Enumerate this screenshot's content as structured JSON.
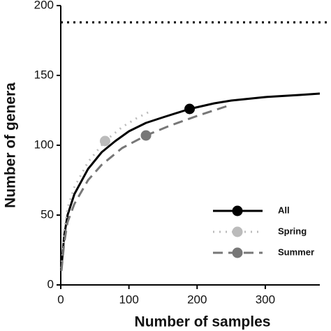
{
  "chart_data": {
    "type": "line",
    "x_label": "Number of samples",
    "y_label": "Number of genera",
    "xlim": [
      0,
      380
    ],
    "ylim": [
      0,
      200
    ],
    "xticks": [
      0,
      100,
      200,
      300
    ],
    "yticks": [
      0,
      50,
      100,
      150,
      200
    ],
    "reference_line": 188,
    "series": [
      {
        "name": "All",
        "color": "#000000",
        "dash": "solid",
        "x": [
          1,
          5,
          10,
          20,
          40,
          60,
          80,
          100,
          125,
          150,
          189,
          225,
          250,
          300,
          350,
          380
        ],
        "y": [
          12,
          35,
          50,
          65,
          83,
          95,
          103,
          110,
          116,
          120,
          126,
          130,
          132,
          134.5,
          136,
          137
        ],
        "marker": {
          "x": 189,
          "y": 126
        }
      },
      {
        "name": "Spring",
        "color": "#bbbbbb",
        "dash": "dotted",
        "x": [
          1,
          5,
          10,
          20,
          40,
          65,
          90,
          110,
          130
        ],
        "y": [
          12,
          38,
          55,
          70,
          88,
          103,
          113,
          119,
          124
        ],
        "marker": {
          "x": 65,
          "y": 103
        }
      },
      {
        "name": "Summer",
        "color": "#777777",
        "dash": "dashed",
        "x": [
          1,
          5,
          10,
          20,
          40,
          60,
          90,
          125,
          160,
          200,
          250
        ],
        "y": [
          10,
          30,
          45,
          58,
          75,
          86,
          98,
          107,
          114,
          121,
          129
        ],
        "marker": {
          "x": 125,
          "y": 107
        }
      }
    ]
  }
}
